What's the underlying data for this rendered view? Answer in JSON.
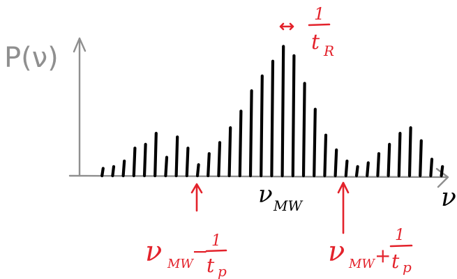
{
  "labels": {
    "y_axis": "P(ν)",
    "x_axis": "ν",
    "center": "ν",
    "center_sub": "MW",
    "spacing_top": "1",
    "spacing_bottom": "t",
    "spacing_sub": "R",
    "left_nu": "ν",
    "left_sub": "MW",
    "left_op": "−",
    "left_num": "1",
    "left_den": "t",
    "left_den_sub": "p",
    "right_nu": "ν",
    "right_sub": "MW",
    "right_op": "+",
    "right_num": "1",
    "right_den": "t",
    "right_den_sub": "p"
  },
  "colors": {
    "axis": "#8f8f8f",
    "spectral_lines": "#000000",
    "annotation": "#e3222b"
  },
  "comb": [
    4,
    5,
    8,
    15,
    17,
    23,
    10,
    21,
    15,
    6,
    12,
    18,
    26,
    35,
    46,
    54,
    62,
    70,
    65,
    50,
    36,
    22,
    14,
    8,
    5,
    7,
    12,
    17,
    23,
    26,
    19,
    9,
    5
  ]
}
